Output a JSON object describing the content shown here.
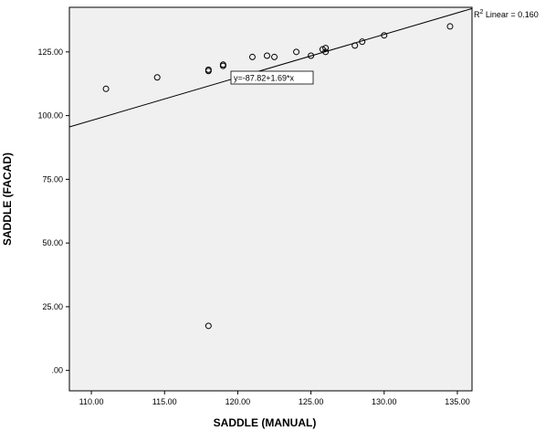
{
  "chart_data": {
    "type": "scatter",
    "xlabel": "SADDLE (MANUAL)",
    "ylabel": "SADDLE (FACAD)",
    "xlim": [
      108.5,
      136.0
    ],
    "ylim": [
      -8.0,
      142.5
    ],
    "xticks": [
      110,
      115,
      120,
      125,
      130,
      135
    ],
    "xtick_labels": [
      "110.00",
      "115.00",
      "120.00",
      "125.00",
      "130.00",
      "135.00"
    ],
    "yticks": [
      0,
      25,
      50,
      75,
      100,
      125
    ],
    "ytick_labels": [
      ".00",
      "25.00",
      "50.00",
      "75.00",
      "100.00",
      "125.00"
    ],
    "points": [
      {
        "x": 111.0,
        "y": 110.5
      },
      {
        "x": 114.5,
        "y": 115.0
      },
      {
        "x": 118.0,
        "y": 117.5
      },
      {
        "x": 118.0,
        "y": 118.0
      },
      {
        "x": 118.0,
        "y": 17.5
      },
      {
        "x": 119.0,
        "y": 119.5
      },
      {
        "x": 119.0,
        "y": 120.0
      },
      {
        "x": 121.0,
        "y": 123.0
      },
      {
        "x": 122.0,
        "y": 123.5
      },
      {
        "x": 122.5,
        "y": 123.0
      },
      {
        "x": 124.0,
        "y": 125.0
      },
      {
        "x": 125.0,
        "y": 123.5
      },
      {
        "x": 125.8,
        "y": 126.0
      },
      {
        "x": 126.0,
        "y": 125.0
      },
      {
        "x": 126.0,
        "y": 126.5
      },
      {
        "x": 128.0,
        "y": 127.5
      },
      {
        "x": 128.5,
        "y": 129.0
      },
      {
        "x": 130.0,
        "y": 131.5
      },
      {
        "x": 134.5,
        "y": 135.0
      }
    ],
    "fit": {
      "intercept": -87.82,
      "slope": 1.69,
      "equation_label": "y=-87.82+1.69*x",
      "r2_prefix": "R",
      "r2_sup": "2",
      "r2_suffix": " Linear = 0.160"
    },
    "grid": false,
    "plot_background": "#f0f0f0",
    "marker_color": "#000000",
    "line_color": "#000000"
  }
}
